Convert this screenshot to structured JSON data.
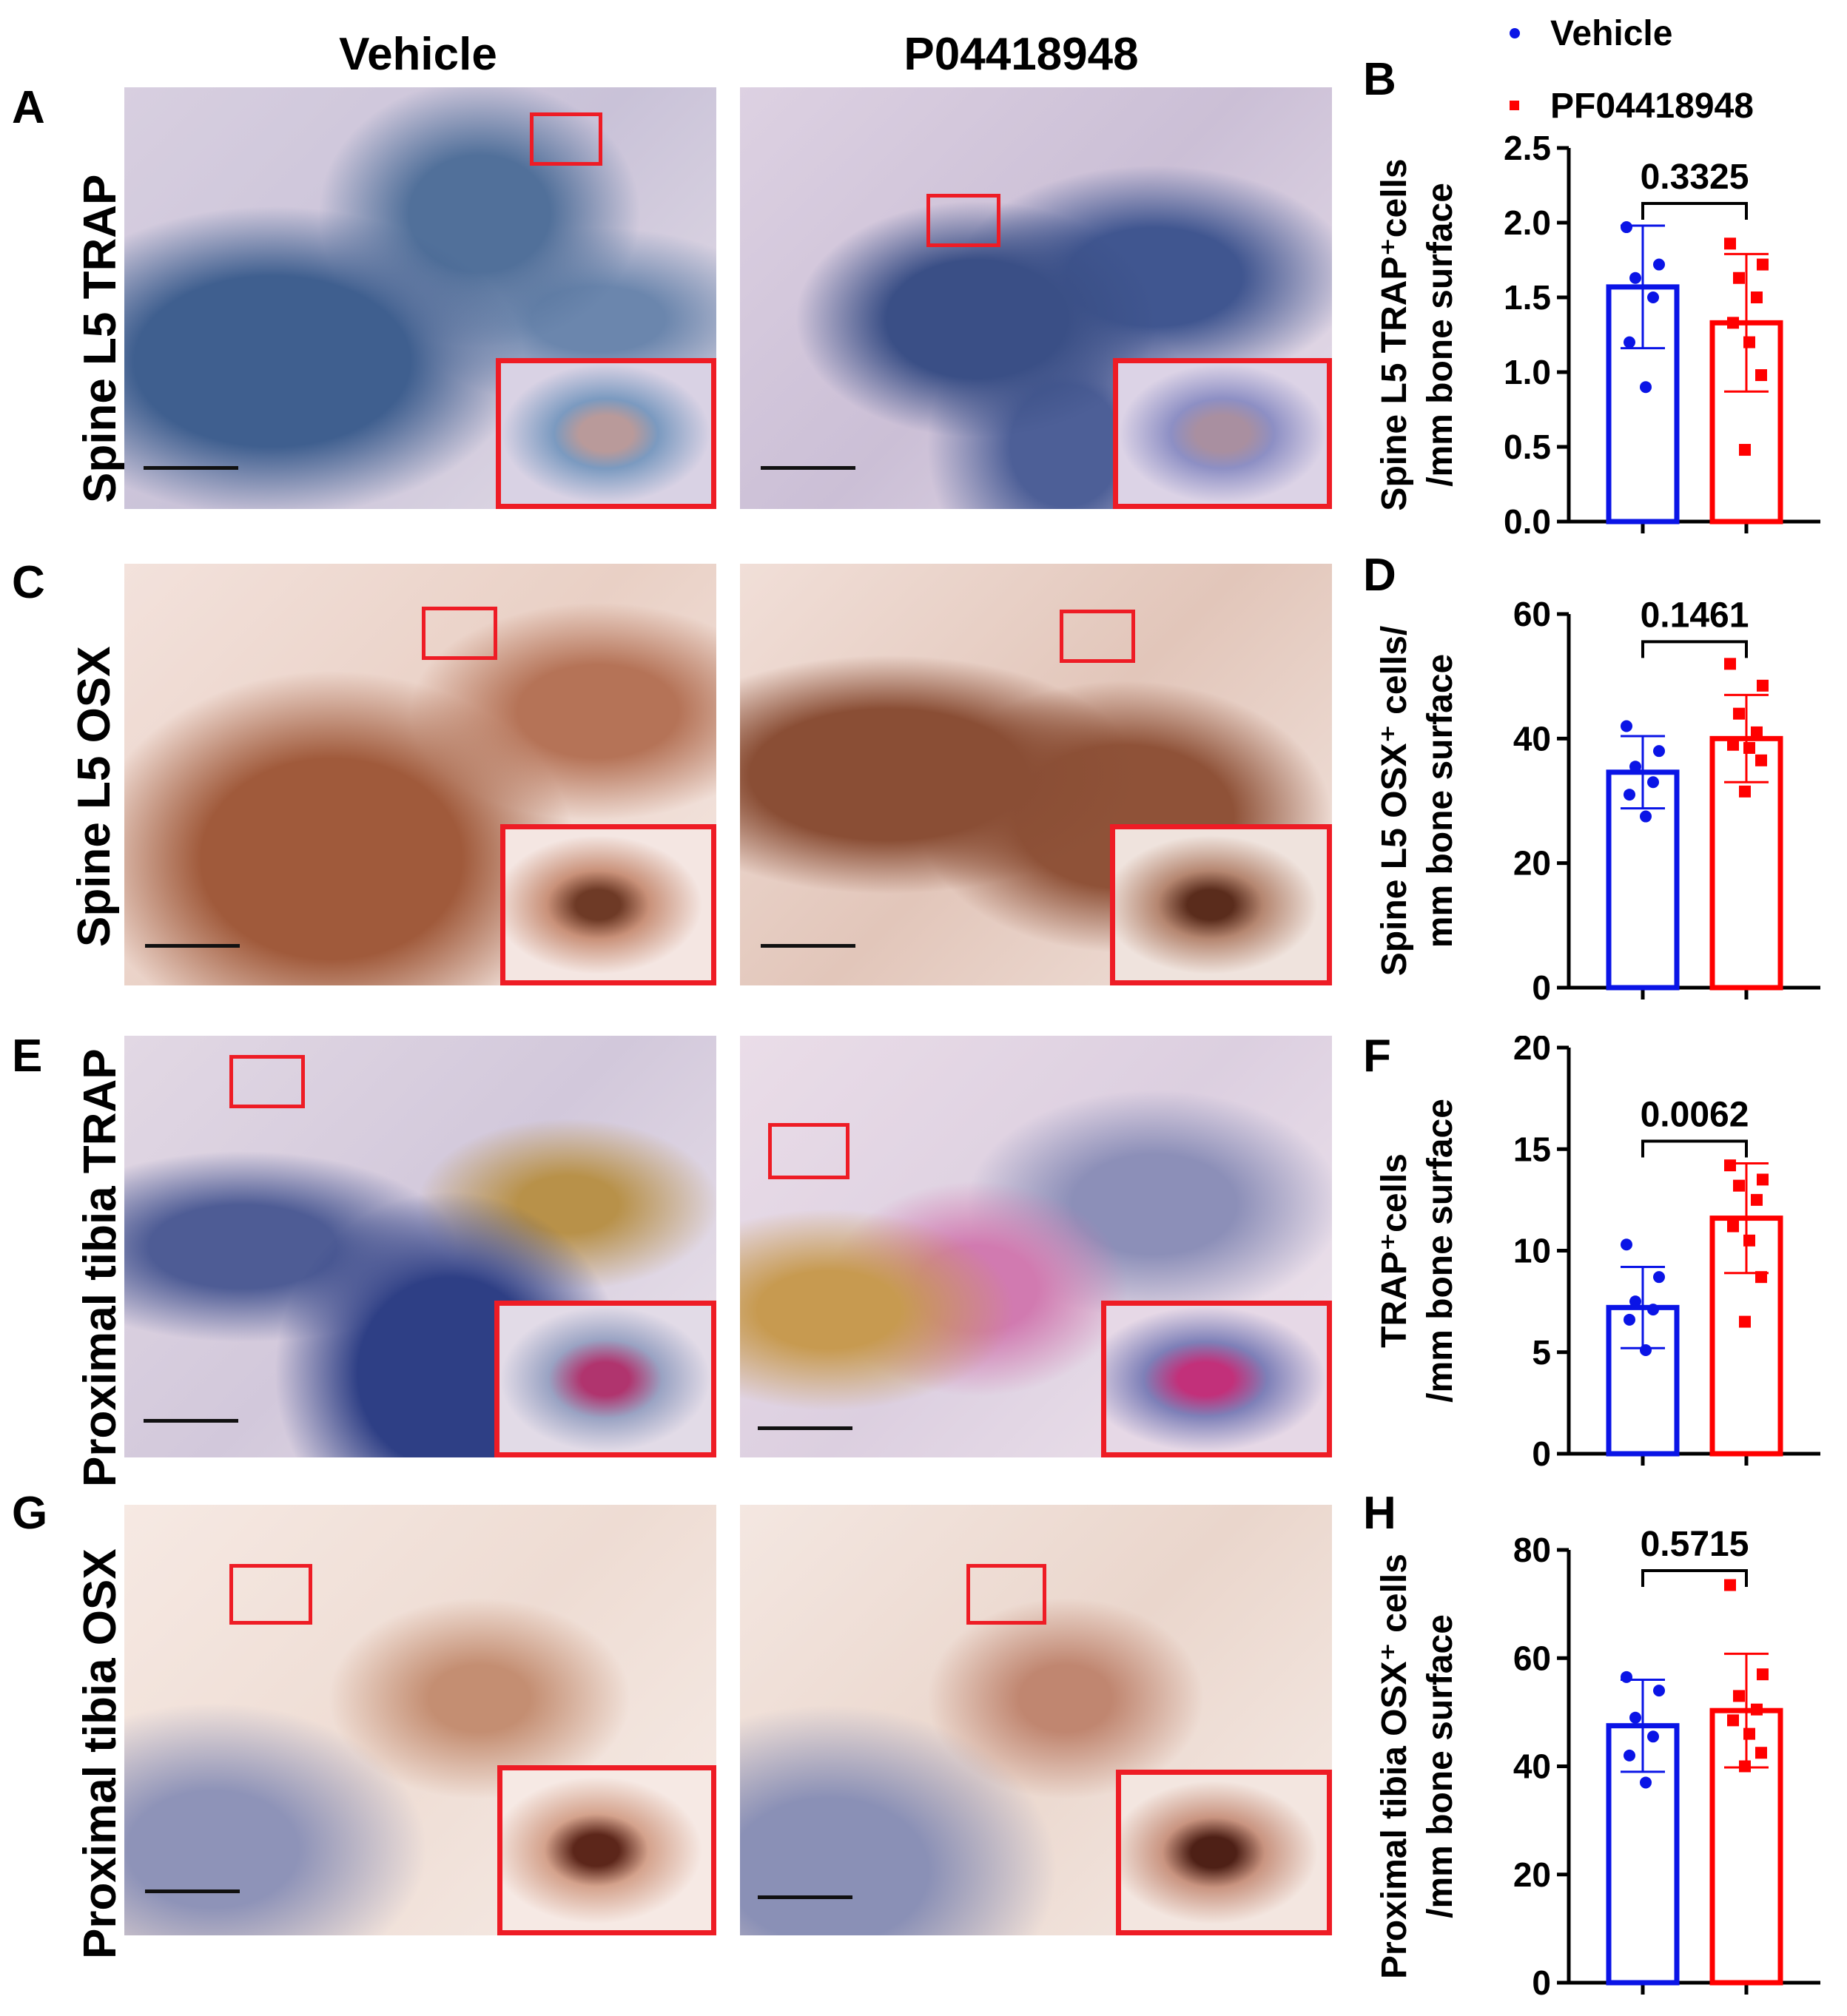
{
  "columns": {
    "vehicle": "Vehicle",
    "treated": "P04418948"
  },
  "legend": [
    {
      "label": "Vehicle",
      "color": "#0a14e6",
      "marker": "circle"
    },
    {
      "label": "PF04418948",
      "color": "#ff0000",
      "marker": "square"
    }
  ],
  "rows": [
    {
      "panel": "A",
      "label": "Spine L5 TRAP",
      "stain": "trap"
    },
    {
      "panel": "C",
      "label": "Spine L5 OSX",
      "stain": "osx"
    },
    {
      "panel": "E",
      "label": "Proximal tibia TRAP",
      "stain": "trap-pink"
    },
    {
      "panel": "G",
      "label": "Proximal tibia OSX",
      "stain": "osx-light"
    }
  ],
  "colors": {
    "vehicle": "#0a14e6",
    "treated": "#ff0000",
    "highlight": "#ee1c25"
  },
  "chart_data": [
    {
      "panel": "B",
      "type": "bar",
      "categories": [
        "Vehicle",
        "PF04418948"
      ],
      "ylabel_lines": [
        "Spine L5 TRAP⁺cells",
        "/mm bone surface"
      ],
      "ylim": [
        0,
        2.5
      ],
      "yticks": [
        "0.0",
        "0.5",
        "1.0",
        "1.5",
        "2.0",
        "2.5"
      ],
      "ytick_values": [
        0,
        0.5,
        1.0,
        1.5,
        2.0,
        2.5
      ],
      "p_value": "0.3325",
      "series": [
        {
          "name": "Vehicle",
          "mean": 1.57,
          "sd": 0.41,
          "points": [
            1.97,
            1.72,
            1.63,
            1.5,
            1.2,
            0.9
          ]
        },
        {
          "name": "PF04418948",
          "mean": 1.33,
          "sd": 0.46,
          "points": [
            1.86,
            1.72,
            1.63,
            1.5,
            1.33,
            1.2,
            0.98,
            0.48
          ]
        }
      ]
    },
    {
      "panel": "D",
      "type": "bar",
      "categories": [
        "Vehicle",
        "PF04418948"
      ],
      "ylabel_lines": [
        "Spine L5 OSX⁺ cells/",
        "mm bone surface"
      ],
      "ylim": [
        0,
        60
      ],
      "yticks": [
        "0",
        "20",
        "40",
        "60"
      ],
      "ytick_values": [
        0,
        20,
        40,
        60
      ],
      "p_value": "0.1461",
      "series": [
        {
          "name": "Vehicle",
          "mean": 34.6,
          "sd": 5.8,
          "points": [
            42.0,
            38.0,
            35.5,
            33.0,
            31.0,
            27.5
          ]
        },
        {
          "name": "PF04418948",
          "mean": 40.0,
          "sd": 7.0,
          "points": [
            52.0,
            48.5,
            44.0,
            41.0,
            39.0,
            38.5,
            36.5,
            31.5
          ]
        }
      ]
    },
    {
      "panel": "F",
      "type": "bar",
      "categories": [
        "Vehicle",
        "PF04418948"
      ],
      "ylabel_lines": [
        "TRAP⁺cells",
        "/mm bone surface"
      ],
      "ylim": [
        0,
        20
      ],
      "yticks": [
        "0",
        "5",
        "10",
        "15",
        "20"
      ],
      "ytick_values": [
        0,
        5,
        10,
        15,
        20
      ],
      "p_value": "0.0062",
      "series": [
        {
          "name": "Vehicle",
          "mean": 7.2,
          "sd": 2.0,
          "points": [
            10.3,
            8.7,
            7.5,
            7.1,
            6.6,
            5.1
          ]
        },
        {
          "name": "PF04418948",
          "mean": 11.6,
          "sd": 2.7,
          "points": [
            14.2,
            13.5,
            13.2,
            12.5,
            11.2,
            10.5,
            8.7,
            6.5
          ]
        }
      ]
    },
    {
      "panel": "H",
      "type": "bar",
      "categories": [
        "Vehicle",
        "PF04418948"
      ],
      "ylabel_lines": [
        "Proximal tibia OSX⁺ cells",
        "/mm bone surface"
      ],
      "ylim": [
        0,
        80
      ],
      "yticks": [
        "0",
        "20",
        "40",
        "60",
        "80"
      ],
      "ytick_values": [
        0,
        20,
        40,
        60,
        80
      ],
      "p_value": "0.5715",
      "series": [
        {
          "name": "Vehicle",
          "mean": 47.5,
          "sd": 8.5,
          "points": [
            56.5,
            54.0,
            49.0,
            45.5,
            42.0,
            37.0
          ]
        },
        {
          "name": "PF04418948",
          "mean": 50.3,
          "sd": 10.5,
          "points": [
            73.5,
            57.0,
            53.0,
            50.5,
            48.5,
            46.0,
            42.5,
            40.0
          ]
        }
      ]
    }
  ]
}
